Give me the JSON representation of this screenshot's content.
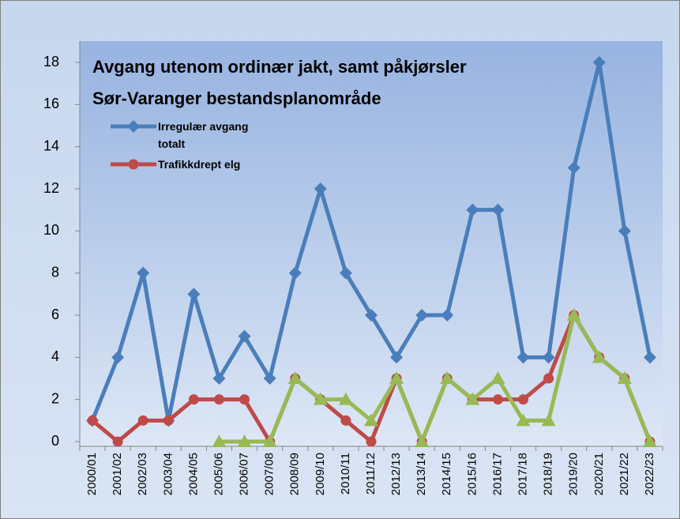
{
  "chart_data": {
    "type": "line",
    "title": "Avgang utenom ordinær jakt, samt påkjørsler",
    "subtitle": "Sør-Varanger bestandsplanområde",
    "categories": [
      "2000/01",
      "2001/02",
      "2002/03",
      "2003/04",
      "2004/05",
      "2005/06",
      "2006/07",
      "2007/08",
      "2008/09",
      "2009/10",
      "2010/11",
      "2011/12",
      "2012/13",
      "2013/14",
      "2014/15",
      "2015/16",
      "2016/17",
      "2017/18",
      "2018/19",
      "2019/20",
      "2020/21",
      "2021/22",
      "2022/23"
    ],
    "series": [
      {
        "name": "Irregulær avgang totalt",
        "color": "#4a7ebb",
        "marker": "diamond",
        "values": [
          1,
          4,
          8,
          1,
          7,
          3,
          5,
          3,
          8,
          12,
          8,
          6,
          4,
          6,
          6,
          11,
          11,
          4,
          4,
          13,
          18,
          10,
          4
        ]
      },
      {
        "name": "Trafikkdrept elg",
        "color": "#be4b48",
        "marker": "circle",
        "values": [
          1,
          0,
          1,
          1,
          2,
          2,
          2,
          0,
          3,
          2,
          1,
          0,
          3,
          0,
          3,
          2,
          2,
          2,
          3,
          6,
          4,
          3,
          0
        ]
      },
      {
        "color": "#98b954",
        "marker": "triangle",
        "values": [
          null,
          null,
          null,
          null,
          null,
          0,
          0,
          0,
          3,
          2,
          2,
          1,
          3,
          0,
          3,
          2,
          3,
          1,
          1,
          6,
          4,
          3,
          0
        ]
      }
    ],
    "ylim": [
      0,
      18
    ],
    "yticks": [
      0,
      2,
      4,
      6,
      8,
      10,
      12,
      14,
      16,
      18
    ],
    "grid": false
  }
}
